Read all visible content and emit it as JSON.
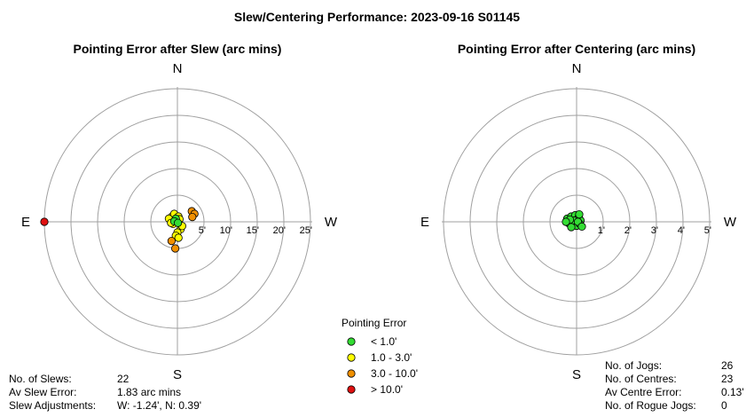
{
  "title": "Slew/Centering Performance: 2023-09-16 S01145",
  "colors": {
    "ring": "#a0a0a0",
    "axis": "#a0a0a0",
    "lt1": "#33dd33",
    "r1_3": "#ffff00",
    "r3_10": "#f09000",
    "gt10": "#e01010"
  },
  "chart_data": [
    {
      "type": "scatter",
      "id": "slew",
      "title": "Pointing Error after Slew (arc mins)",
      "directions": {
        "n": "N",
        "s": "S",
        "e": "E",
        "w": "W"
      },
      "rings": [
        5,
        10,
        15,
        20,
        25
      ],
      "tick_labels": [
        "5'",
        "10'",
        "15'",
        "20'",
        "25'"
      ],
      "points": [
        {
          "w": -25,
          "n": 0,
          "cat": "gt10"
        },
        {
          "w": -1.0,
          "n": 1.0,
          "cat": "r1_3"
        },
        {
          "w": -1.6,
          "n": 0.6,
          "cat": "r1_3"
        },
        {
          "w": -0.6,
          "n": 1.5,
          "cat": "r1_3"
        },
        {
          "w": 0.2,
          "n": 1.0,
          "cat": "r1_3"
        },
        {
          "w": -0.4,
          "n": 0.3,
          "cat": "r1_3"
        },
        {
          "w": 0.4,
          "n": 0.5,
          "cat": "r1_3"
        },
        {
          "w": -0.8,
          "n": -0.4,
          "cat": "r1_3"
        },
        {
          "w": 0.6,
          "n": -1.4,
          "cat": "r1_3"
        },
        {
          "w": 0.0,
          "n": -2.0,
          "cat": "r1_3"
        },
        {
          "w": -0.3,
          "n": -2.6,
          "cat": "r1_3"
        },
        {
          "w": 0.2,
          "n": -3.0,
          "cat": "r1_3"
        },
        {
          "w": 0.9,
          "n": -0.8,
          "cat": "r1_3"
        },
        {
          "w": -1.2,
          "n": -0.2,
          "cat": "r1_3"
        },
        {
          "w": -0.3,
          "n": 0.6,
          "cat": "lt1"
        },
        {
          "w": -0.6,
          "n": 0.1,
          "cat": "lt1"
        },
        {
          "w": 0.1,
          "n": -0.2,
          "cat": "lt1"
        },
        {
          "w": 2.7,
          "n": 2.0,
          "cat": "r3_10"
        },
        {
          "w": 3.2,
          "n": 1.5,
          "cat": "r3_10"
        },
        {
          "w": 2.8,
          "n": 0.9,
          "cat": "r3_10"
        },
        {
          "w": -0.4,
          "n": -5.0,
          "cat": "r3_10"
        },
        {
          "w": -1.1,
          "n": -3.6,
          "cat": "r3_10"
        }
      ]
    },
    {
      "type": "scatter",
      "id": "centre",
      "title": "Pointing Error after Centering (arc mins)",
      "directions": {
        "n": "N",
        "s": "S",
        "e": "E",
        "w": "W"
      },
      "rings": [
        1,
        2,
        3,
        4,
        5
      ],
      "tick_labels": [
        "1'",
        "2'",
        "3'",
        "4'",
        "5'"
      ],
      "points": [
        {
          "w": -0.35,
          "n": 0.12,
          "cat": "lt1"
        },
        {
          "w": -0.2,
          "n": 0.2,
          "cat": "lt1"
        },
        {
          "w": -0.05,
          "n": 0.25,
          "cat": "lt1"
        },
        {
          "w": 0.08,
          "n": 0.18,
          "cat": "lt1"
        },
        {
          "w": 0.15,
          "n": 0.05,
          "cat": "lt1"
        },
        {
          "w": -0.3,
          "n": -0.05,
          "cat": "lt1"
        },
        {
          "w": -0.15,
          "n": -0.12,
          "cat": "lt1"
        },
        {
          "w": 0.0,
          "n": -0.15,
          "cat": "lt1"
        },
        {
          "w": 0.12,
          "n": -0.08,
          "cat": "lt1"
        },
        {
          "w": -0.1,
          "n": 0.05,
          "cat": "lt1"
        },
        {
          "w": -0.25,
          "n": 0.08,
          "cat": "lt1"
        },
        {
          "w": 0.05,
          "n": 0.0,
          "cat": "lt1"
        },
        {
          "w": -0.2,
          "n": -0.2,
          "cat": "lt1"
        },
        {
          "w": 0.1,
          "n": 0.28,
          "cat": "lt1"
        },
        {
          "w": -0.4,
          "n": 0.0,
          "cat": "lt1"
        },
        {
          "w": 0.2,
          "n": -0.18,
          "cat": "lt1"
        }
      ]
    }
  ],
  "legend": {
    "title": "Pointing Error",
    "items": [
      {
        "label": "< 1.0'",
        "cat": "lt1"
      },
      {
        "label": "1.0 - 3.0'",
        "cat": "r1_3"
      },
      {
        "label": "3.0 - 10.0'",
        "cat": "r3_10"
      },
      {
        "label": "> 10.0'",
        "cat": "gt10"
      }
    ]
  },
  "slew_stats": [
    {
      "label": "No. of Slews:",
      "value": "22"
    },
    {
      "label": "Av Slew Error:",
      "value": "1.83 arc mins"
    },
    {
      "label": "Slew Adjustments:",
      "value": "W: -1.24', N: 0.39'"
    }
  ],
  "centre_stats": [
    {
      "label": "No. of Jogs:",
      "value": "26"
    },
    {
      "label": "No. of Centres:",
      "value": "23"
    },
    {
      "label": "Av Centre Error:",
      "value": "0.13'"
    },
    {
      "label": "No. of Rogue Jogs:",
      "value": "0"
    }
  ]
}
